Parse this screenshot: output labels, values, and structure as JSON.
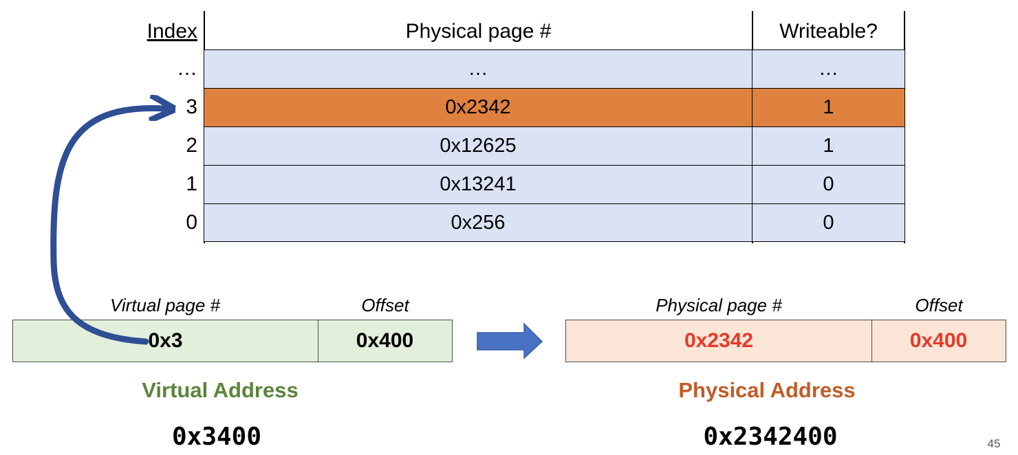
{
  "page_table": {
    "headers": {
      "index": "Index",
      "ppn": "Physical page #",
      "writeable": "Writeable?"
    },
    "rows": [
      {
        "index": "…",
        "ppn": "…",
        "writeable": "…",
        "highlighted": false
      },
      {
        "index": "3",
        "ppn": "0x2342",
        "writeable": "1",
        "highlighted": true
      },
      {
        "index": "2",
        "ppn": "0x12625",
        "writeable": "1",
        "highlighted": false
      },
      {
        "index": "1",
        "ppn": "0x13241",
        "writeable": "0",
        "highlighted": false
      },
      {
        "index": "0",
        "ppn": "0x256",
        "writeable": "0",
        "highlighted": false
      }
    ]
  },
  "virtual_address": {
    "page_label": "Virtual page #",
    "offset_label": "Offset",
    "page_value": "0x3",
    "offset_value": "0x400",
    "title": "Virtual Address",
    "full": "0x3400"
  },
  "physical_address": {
    "page_label": "Physical page #",
    "offset_label": "Offset",
    "page_value": "0x2342",
    "offset_value": "0x400",
    "title": "Physical Address",
    "full": "0x2342400"
  },
  "slide_number": "45",
  "colors": {
    "table_row": "#dae3f3",
    "table_highlight": "#e0823f",
    "virtual_box": "#e2efda",
    "virtual_title": "#5b843b",
    "physical_box": "#fbe5d6",
    "physical_title": "#c25b26",
    "physical_value": "#e8392a",
    "arrow": "#2f4f94"
  },
  "icons": {
    "lookup_arrow": "curved-arrow-icon",
    "translate_arrow": "right-arrow-icon"
  }
}
